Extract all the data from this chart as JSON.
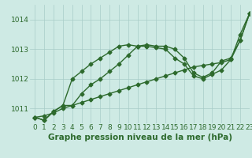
{
  "x": [
    0,
    1,
    2,
    3,
    4,
    5,
    6,
    7,
    8,
    9,
    10,
    11,
    12,
    13,
    14,
    15,
    16,
    17,
    18,
    19,
    20,
    21,
    22,
    23
  ],
  "line1": [
    1010.7,
    1010.6,
    1010.9,
    1011.1,
    1012.0,
    1012.25,
    1012.5,
    1012.7,
    1012.9,
    1013.1,
    1013.15,
    1013.1,
    1013.1,
    1013.05,
    1013.0,
    1012.7,
    1012.5,
    1012.1,
    1012.0,
    1012.15,
    1012.3,
    1012.65,
    1013.5,
    1014.2
  ],
  "line2": [
    1010.7,
    1010.6,
    1010.9,
    1011.1,
    1011.1,
    1011.5,
    1011.8,
    1012.0,
    1012.25,
    1012.5,
    1012.8,
    1013.1,
    1013.15,
    1013.1,
    1013.1,
    1013.0,
    1012.7,
    1012.2,
    1012.05,
    1012.2,
    1012.6,
    1012.7,
    1013.3,
    1014.2
  ],
  "line3": [
    1010.7,
    1010.75,
    1010.85,
    1011.0,
    1011.1,
    1011.2,
    1011.3,
    1011.4,
    1011.5,
    1011.6,
    1011.7,
    1011.8,
    1011.9,
    1012.0,
    1012.1,
    1012.2,
    1012.3,
    1012.4,
    1012.45,
    1012.5,
    1012.55,
    1012.65,
    1013.3,
    1014.2
  ],
  "line_color": "#2d6a2d",
  "bg_color": "#ceeae4",
  "grid_color": "#a8ccc8",
  "xlabel": "Graphe pression niveau de la mer (hPa)",
  "ylim": [
    1010.5,
    1014.5
  ],
  "xlim": [
    -0.5,
    23
  ],
  "yticks": [
    1011,
    1012,
    1013,
    1014
  ],
  "xticks": [
    0,
    1,
    2,
    3,
    4,
    5,
    6,
    7,
    8,
    9,
    10,
    11,
    12,
    13,
    14,
    15,
    16,
    17,
    18,
    19,
    20,
    21,
    22,
    23
  ],
  "marker": "D",
  "markersize": 2.5,
  "linewidth": 1.0,
  "xlabel_fontsize": 7.5,
  "tick_fontsize": 6.5
}
